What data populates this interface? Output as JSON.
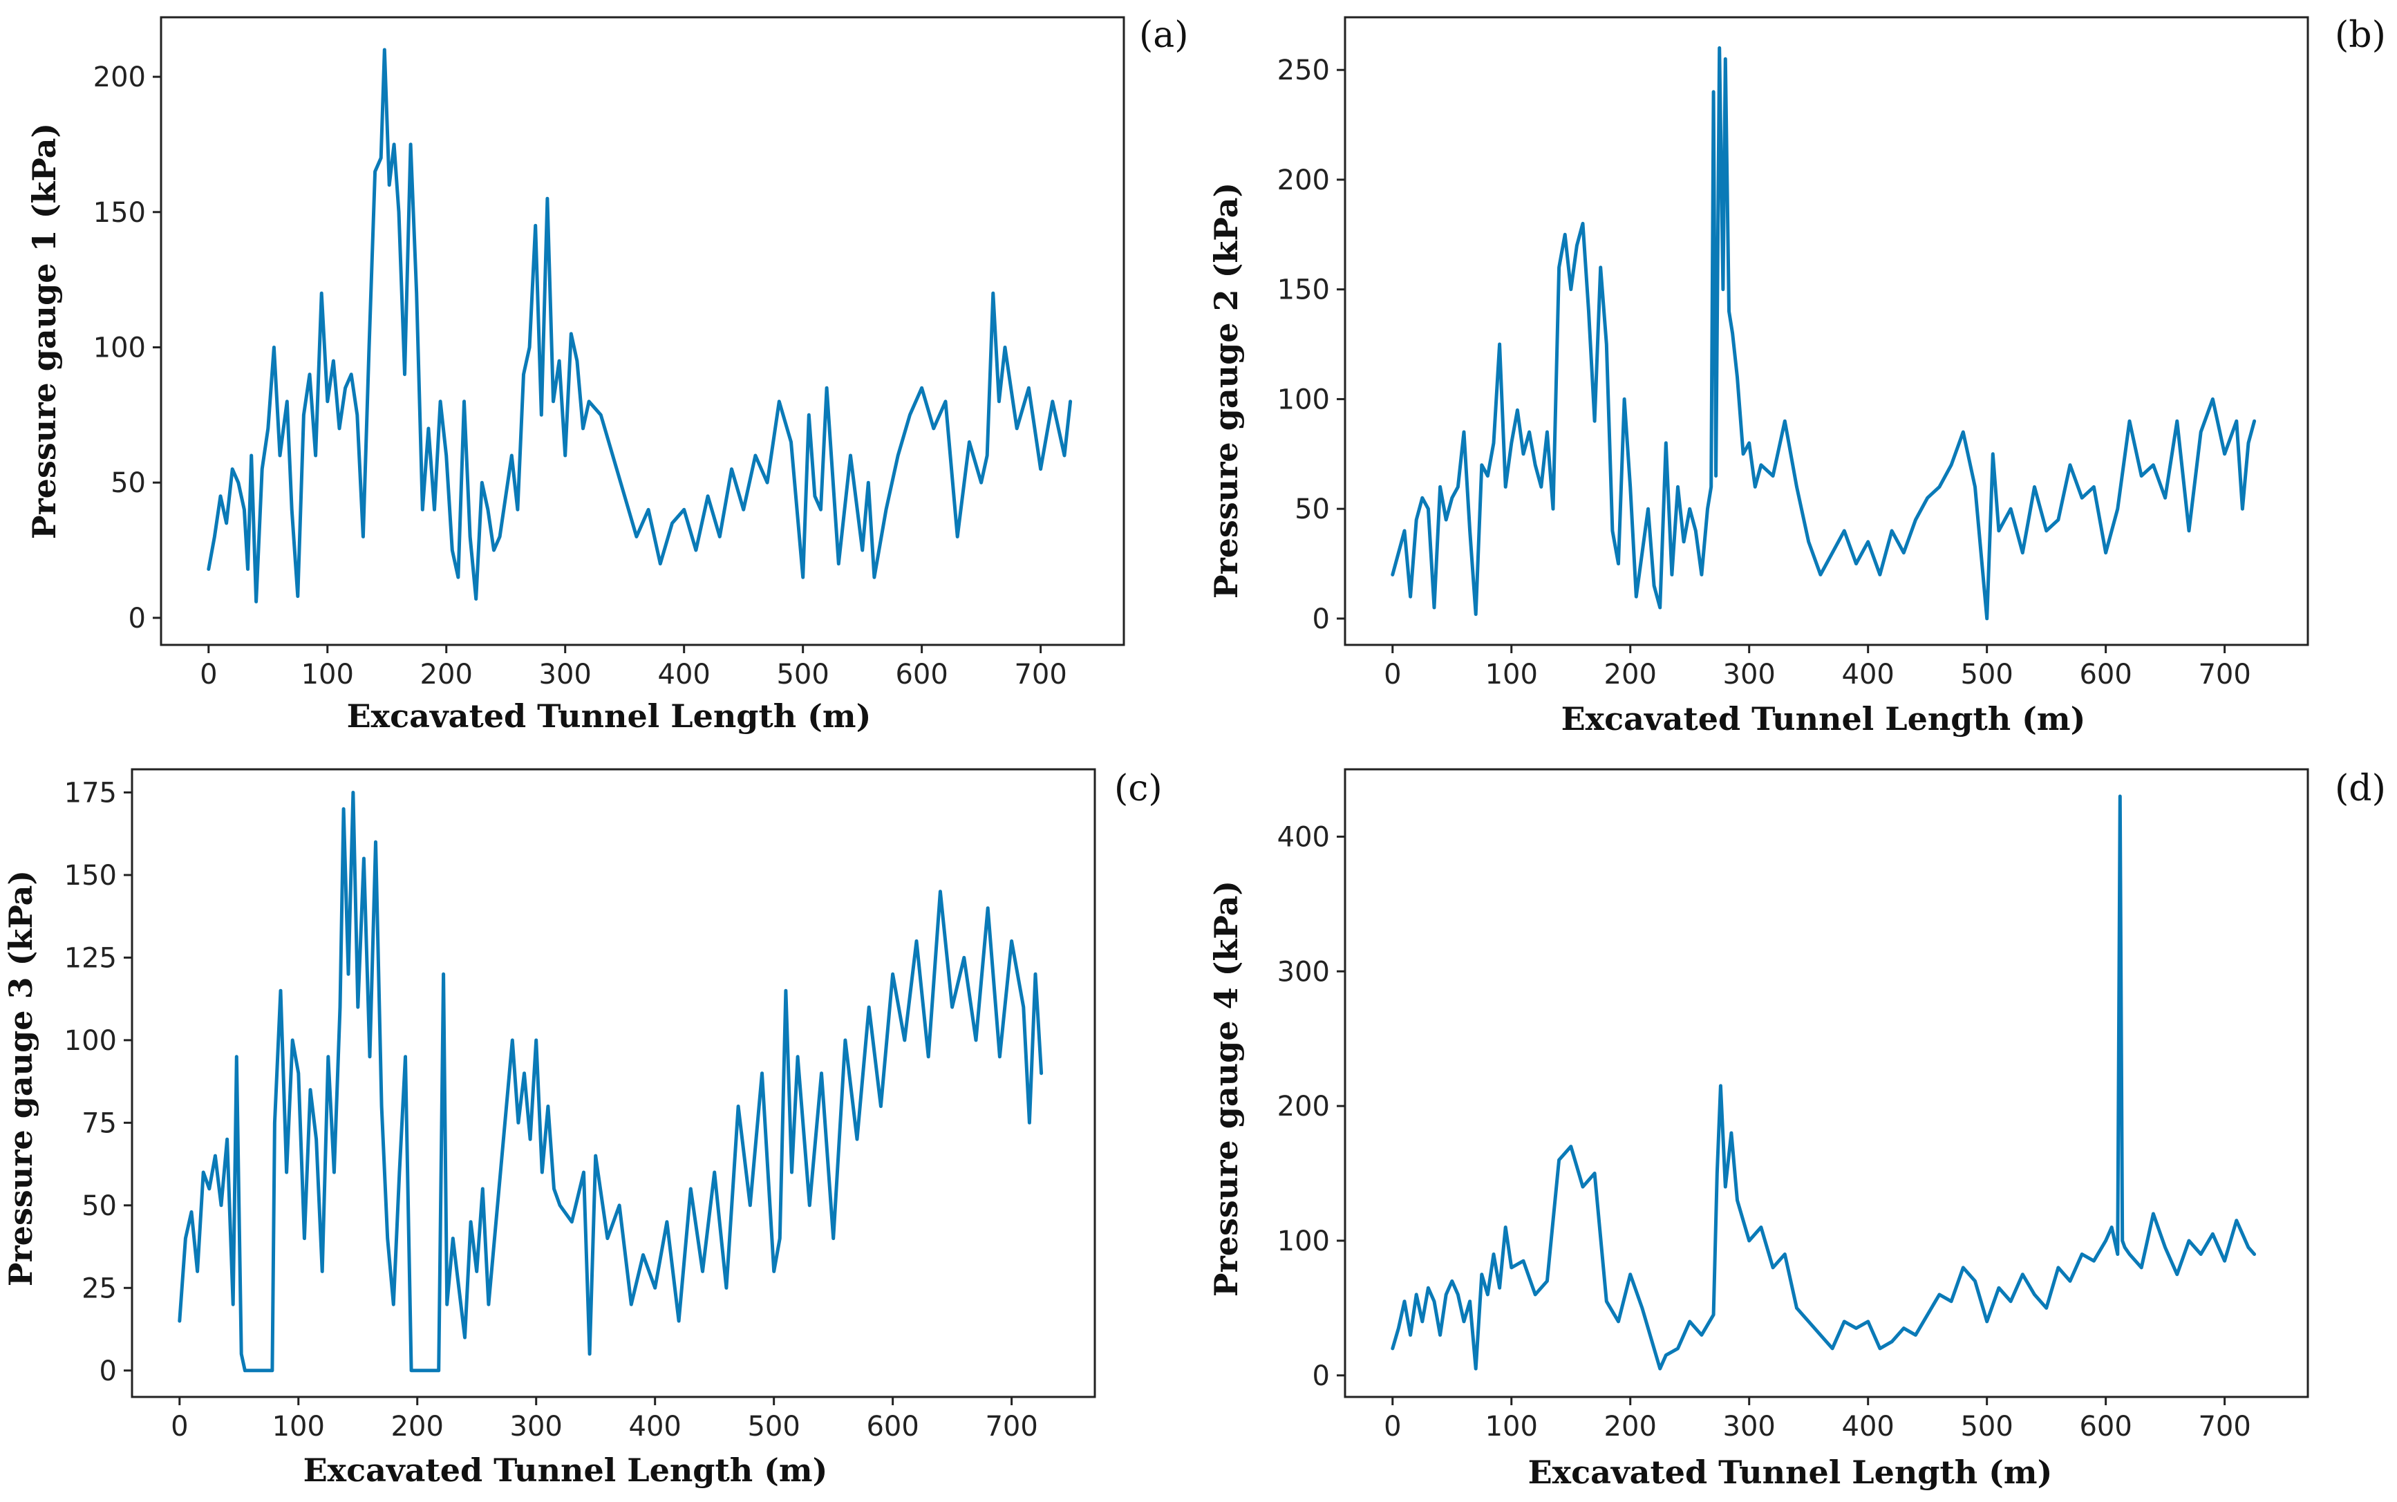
{
  "line_color": "#0a7ab7",
  "chart_data": [
    {
      "type": "line",
      "panel_label": "(a)",
      "title": "",
      "xlabel": "Excavated Tunnel Length (m)",
      "ylabel": "Pressure gauge 1 (kPa)",
      "xlim": [
        -40,
        770
      ],
      "ylim": [
        -10,
        222
      ],
      "xticks": [
        0,
        100,
        200,
        300,
        400,
        500,
        600,
        700
      ],
      "yticks": [
        0,
        50,
        100,
        150,
        200
      ],
      "grid": false,
      "series": [
        {
          "name": "Pressure gauge 1",
          "x": [
            0,
            5,
            10,
            15,
            20,
            25,
            30,
            33,
            36,
            40,
            45,
            50,
            55,
            60,
            63,
            66,
            70,
            75,
            80,
            85,
            90,
            95,
            100,
            105,
            110,
            115,
            120,
            125,
            130,
            135,
            140,
            145,
            148,
            152,
            156,
            160,
            165,
            170,
            175,
            180,
            185,
            190,
            195,
            200,
            205,
            210,
            215,
            220,
            225,
            230,
            235,
            240,
            245,
            250,
            255,
            260,
            265,
            270,
            275,
            280,
            285,
            290,
            295,
            300,
            305,
            310,
            315,
            320,
            330,
            340,
            350,
            360,
            370,
            380,
            390,
            400,
            410,
            420,
            430,
            440,
            450,
            460,
            470,
            480,
            490,
            500,
            505,
            510,
            515,
            520,
            530,
            540,
            550,
            555,
            560,
            570,
            580,
            590,
            600,
            610,
            620,
            630,
            640,
            650,
            655,
            660,
            665,
            670,
            680,
            690,
            700,
            710,
            715,
            720,
            725
          ],
          "y": [
            18,
            30,
            45,
            35,
            55,
            50,
            40,
            18,
            60,
            6,
            55,
            70,
            100,
            60,
            70,
            80,
            40,
            8,
            75,
            90,
            60,
            120,
            80,
            95,
            70,
            85,
            90,
            75,
            30,
            100,
            165,
            170,
            210,
            160,
            175,
            150,
            90,
            175,
            120,
            40,
            70,
            40,
            80,
            60,
            25,
            15,
            80,
            30,
            7,
            50,
            40,
            25,
            30,
            45,
            60,
            40,
            90,
            100,
            145,
            75,
            155,
            80,
            95,
            60,
            105,
            95,
            70,
            80,
            75,
            60,
            45,
            30,
            40,
            20,
            35,
            40,
            25,
            45,
            30,
            55,
            40,
            60,
            50,
            80,
            65,
            15,
            75,
            45,
            40,
            85,
            20,
            60,
            25,
            50,
            15,
            40,
            60,
            75,
            85,
            70,
            80,
            30,
            65,
            50,
            60,
            120,
            80,
            100,
            70,
            85,
            55,
            80,
            70,
            60,
            80
          ]
        }
      ]
    },
    {
      "type": "line",
      "panel_label": "(b)",
      "title": "",
      "xlabel": "Excavated Tunnel Length (m)",
      "ylabel": "Pressure gauge 2 (kPa)",
      "xlim": [
        -40,
        770
      ],
      "ylim": [
        -12,
        274
      ],
      "xticks": [
        0,
        100,
        200,
        300,
        400,
        500,
        600,
        700
      ],
      "yticks": [
        0,
        50,
        100,
        150,
        200,
        250
      ],
      "grid": false,
      "series": [
        {
          "name": "Pressure gauge 2",
          "x": [
            0,
            5,
            10,
            15,
            20,
            25,
            30,
            35,
            40,
            45,
            50,
            55,
            60,
            65,
            70,
            75,
            80,
            85,
            90,
            95,
            100,
            105,
            110,
            115,
            120,
            125,
            130,
            135,
            140,
            145,
            150,
            155,
            160,
            165,
            170,
            175,
            180,
            185,
            190,
            195,
            200,
            205,
            210,
            215,
            220,
            225,
            230,
            235,
            240,
            245,
            250,
            255,
            260,
            265,
            268,
            270,
            272,
            275,
            278,
            280,
            283,
            286,
            290,
            295,
            300,
            305,
            310,
            320,
            330,
            340,
            350,
            360,
            370,
            380,
            390,
            400,
            410,
            420,
            430,
            440,
            450,
            460,
            470,
            480,
            490,
            500,
            505,
            510,
            520,
            530,
            540,
            550,
            560,
            570,
            580,
            590,
            600,
            610,
            620,
            630,
            640,
            650,
            660,
            670,
            680,
            690,
            700,
            710,
            715,
            720,
            725
          ],
          "y": [
            20,
            30,
            40,
            10,
            45,
            55,
            50,
            5,
            60,
            45,
            55,
            60,
            85,
            40,
            2,
            70,
            65,
            80,
            125,
            60,
            80,
            95,
            75,
            85,
            70,
            60,
            85,
            50,
            160,
            175,
            150,
            170,
            180,
            140,
            90,
            160,
            125,
            40,
            25,
            100,
            60,
            10,
            30,
            50,
            15,
            5,
            80,
            20,
            60,
            35,
            50,
            40,
            20,
            50,
            60,
            240,
            65,
            260,
            150,
            255,
            140,
            130,
            110,
            75,
            80,
            60,
            70,
            65,
            90,
            60,
            35,
            20,
            30,
            40,
            25,
            35,
            20,
            40,
            30,
            45,
            55,
            60,
            70,
            85,
            60,
            0,
            75,
            40,
            50,
            30,
            60,
            40,
            45,
            70,
            55,
            60,
            30,
            50,
            90,
            65,
            70,
            55,
            90,
            40,
            85,
            100,
            75,
            90,
            50,
            80,
            90
          ]
        }
      ]
    },
    {
      "type": "line",
      "panel_label": "(c)",
      "title": "",
      "xlabel": "Excavated Tunnel Length (m)",
      "ylabel": "Pressure gauge 3 (kPa)",
      "xlim": [
        -40,
        770
      ],
      "ylim": [
        -8,
        182
      ],
      "xticks": [
        0,
        100,
        200,
        300,
        400,
        500,
        600,
        700
      ],
      "yticks": [
        0,
        25,
        50,
        75,
        100,
        125,
        150,
        175
      ],
      "grid": false,
      "series": [
        {
          "name": "Pressure gauge 3",
          "x": [
            0,
            5,
            10,
            15,
            20,
            25,
            30,
            35,
            40,
            45,
            48,
            52,
            55,
            60,
            65,
            70,
            75,
            78,
            80,
            85,
            90,
            95,
            100,
            105,
            110,
            115,
            120,
            125,
            130,
            135,
            138,
            142,
            146,
            150,
            155,
            160,
            165,
            170,
            175,
            180,
            185,
            190,
            195,
            200,
            205,
            210,
            215,
            218,
            222,
            225,
            230,
            235,
            240,
            245,
            250,
            255,
            260,
            265,
            270,
            275,
            280,
            285,
            290,
            295,
            300,
            305,
            310,
            315,
            320,
            330,
            340,
            345,
            350,
            360,
            370,
            380,
            390,
            400,
            410,
            420,
            430,
            440,
            450,
            460,
            470,
            480,
            490,
            500,
            505,
            510,
            515,
            520,
            530,
            540,
            550,
            560,
            570,
            580,
            590,
            600,
            610,
            620,
            630,
            640,
            650,
            660,
            670,
            680,
            690,
            700,
            710,
            715,
            720,
            725
          ],
          "y": [
            15,
            40,
            48,
            30,
            60,
            55,
            65,
            50,
            70,
            20,
            95,
            5,
            0,
            0,
            0,
            0,
            0,
            0,
            75,
            115,
            60,
            100,
            90,
            40,
            85,
            70,
            30,
            95,
            60,
            110,
            170,
            120,
            175,
            110,
            155,
            95,
            160,
            80,
            40,
            20,
            60,
            95,
            0,
            0,
            0,
            0,
            0,
            0,
            120,
            20,
            40,
            25,
            10,
            45,
            30,
            55,
            20,
            40,
            60,
            80,
            100,
            75,
            90,
            70,
            100,
            60,
            80,
            55,
            50,
            45,
            60,
            5,
            65,
            40,
            50,
            20,
            35,
            25,
            45,
            15,
            55,
            30,
            60,
            25,
            80,
            50,
            90,
            30,
            40,
            115,
            60,
            95,
            50,
            90,
            40,
            100,
            70,
            110,
            80,
            120,
            100,
            130,
            95,
            145,
            110,
            125,
            100,
            140,
            95,
            130,
            110,
            75,
            120,
            90
          ]
        }
      ]
    },
    {
      "type": "line",
      "panel_label": "(d)",
      "title": "",
      "xlabel": "Excavated Tunnel Length (m)",
      "ylabel": "Pressure gauge 4 (kPa)",
      "xlim": [
        -40,
        770
      ],
      "ylim": [
        -16,
        450
      ],
      "xticks": [
        0,
        100,
        200,
        300,
        400,
        500,
        600,
        700
      ],
      "yticks": [
        0,
        100,
        200,
        300,
        400
      ],
      "grid": false,
      "series": [
        {
          "name": "Pressure gauge 4",
          "x": [
            0,
            5,
            10,
            15,
            20,
            25,
            30,
            35,
            40,
            45,
            50,
            55,
            60,
            65,
            70,
            75,
            80,
            85,
            90,
            95,
            100,
            110,
            120,
            130,
            140,
            150,
            160,
            170,
            180,
            190,
            200,
            210,
            220,
            225,
            230,
            240,
            250,
            260,
            270,
            273,
            276,
            280,
            285,
            290,
            300,
            310,
            320,
            330,
            340,
            350,
            360,
            370,
            380,
            390,
            400,
            410,
            420,
            430,
            440,
            450,
            460,
            470,
            480,
            490,
            500,
            510,
            520,
            530,
            540,
            550,
            560,
            570,
            580,
            590,
            600,
            605,
            610,
            612,
            614,
            616,
            620,
            630,
            640,
            650,
            660,
            670,
            680,
            690,
            700,
            710,
            720,
            725
          ],
          "y": [
            20,
            35,
            55,
            30,
            60,
            40,
            65,
            55,
            30,
            60,
            70,
            60,
            40,
            55,
            5,
            75,
            60,
            90,
            65,
            110,
            80,
            85,
            60,
            70,
            160,
            170,
            140,
            150,
            55,
            40,
            75,
            50,
            20,
            5,
            15,
            20,
            40,
            30,
            45,
            150,
            215,
            140,
            180,
            130,
            100,
            110,
            80,
            90,
            50,
            40,
            30,
            20,
            40,
            35,
            40,
            20,
            25,
            35,
            30,
            45,
            60,
            55,
            80,
            70,
            40,
            65,
            55,
            75,
            60,
            50,
            80,
            70,
            90,
            85,
            100,
            110,
            90,
            430,
            100,
            95,
            90,
            80,
            120,
            95,
            75,
            100,
            90,
            105,
            85,
            115,
            95,
            90
          ]
        }
      ]
    }
  ]
}
